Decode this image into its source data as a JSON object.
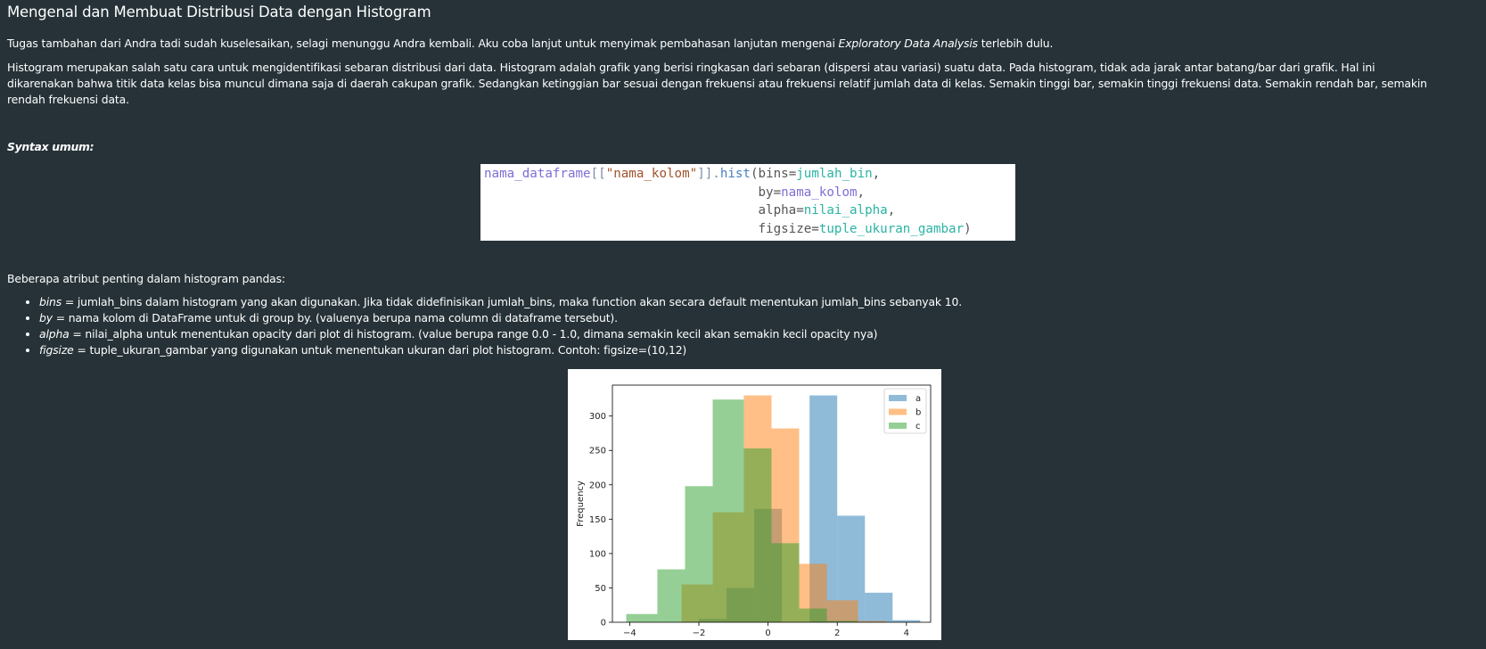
{
  "title": "Mengenal dan Membuat Distribusi Data dengan Histogram",
  "intro": {
    "before": "Tugas tambahan dari Andra tadi sudah kuselesaikan, selagi menunggu Andra kembali. Aku coba lanjut untuk menyimak pembahasan lanjutan mengenai ",
    "emphasis": "Exploratory Data Analysis",
    "after": " terlebih dulu."
  },
  "description": {
    "line1": "Histogram merupakan salah satu cara untuk mengidentifikasi sebaran distribusi dari data. Histogram adalah grafik yang berisi ringkasan dari sebaran (dispersi atau variasi) suatu data. Pada histogram, tidak ada jarak antar batang/bar dari grafik. Hal ini",
    "line2": "dikarenakan bahwa titik data kelas bisa muncul dimana saja di daerah cakupan grafik. Sedangkan ketinggian bar sesuai dengan frekuensi atau frekuensi relatif jumlah data di kelas. Semakin tinggi bar, semakin tinggi frekuensi data. Semakin rendah bar, semakin",
    "line3": "rendah frekuensi data."
  },
  "syntax_label": "Syntax umum:",
  "code": {
    "df": "nama_dataframe",
    "open": "[[",
    "col": "\"nama_kolom\"",
    "close": "]].",
    "method": "hist",
    "paren": "(",
    "bins_key": "bins=",
    "bins_val": "jumlah_bin",
    "by_key": "by=",
    "by_val": "nama_kolom",
    "alpha_key": "alpha=",
    "alpha_val": "nilai_alpha",
    "figsize_key": "figsize=",
    "figsize_val": "tuple_ukuran_gambar",
    "comma": ",",
    "end": ")"
  },
  "attributes_intro": "Beberapa atribut penting dalam histogram pandas:",
  "attributes": [
    {
      "name": "bins",
      "desc": " = jumlah_bins dalam histogram yang akan digunakan. Jika tidak didefinisikan jumlah_bins, maka function akan secara default menentukan jumlah_bins sebanyak 10."
    },
    {
      "name": "by",
      "desc": " = nama kolom di DataFrame untuk di group by. (valuenya berupa nama column di dataframe tersebut)."
    },
    {
      "name": "alpha",
      "desc": " = nilai_alpha untuk menentukan opacity dari plot di histogram. (value berupa range 0.0 - 1.0, dimana semakin kecil akan semakin kecil opacity nya)"
    },
    {
      "name": "figsize",
      "desc": " = tuple_ukuran_gambar yang digunakan untuk menentukan ukuran dari plot histogram. Contoh: figsize=(10,12)"
    }
  ],
  "colors": {
    "background": "#263238",
    "series_a": "#1f77b4",
    "series_b": "#ff7f0e",
    "series_c": "#2ca02c"
  },
  "chart_data": {
    "type": "bar",
    "title": "",
    "xlabel": "",
    "ylabel": "Frequency",
    "xlim": [
      -4.5,
      4.7
    ],
    "ylim": [
      0,
      345
    ],
    "xticks": [
      -4,
      -2,
      0,
      2,
      4
    ],
    "yticks": [
      0,
      50,
      100,
      150,
      200,
      250,
      300
    ],
    "alpha": 0.5,
    "grid": false,
    "legend": "top-right",
    "series": [
      {
        "name": "a",
        "color": "#1f77b4",
        "bins": [
          [
            -2.0,
            -1.2,
            5
          ],
          [
            -1.2,
            -0.4,
            50
          ],
          [
            -0.4,
            0.4,
            165
          ],
          [
            0.4,
            1.2,
            0
          ],
          [
            1.2,
            2.0,
            330
          ],
          [
            2.0,
            2.8,
            155
          ],
          [
            2.8,
            3.6,
            43
          ],
          [
            3.6,
            4.4,
            3
          ]
        ]
      },
      {
        "name": "b",
        "color": "#ff7f0e",
        "bins": [
          [
            -2.5,
            -1.6,
            55
          ],
          [
            -1.6,
            -0.7,
            160
          ],
          [
            -0.7,
            0.1,
            330
          ],
          [
            0.1,
            0.9,
            282
          ],
          [
            0.9,
            1.7,
            85
          ],
          [
            1.7,
            2.6,
            32
          ],
          [
            2.6,
            3.4,
            2
          ]
        ]
      },
      {
        "name": "c",
        "color": "#2ca02c",
        "bins": [
          [
            -4.1,
            -3.2,
            12
          ],
          [
            -3.2,
            -2.4,
            77
          ],
          [
            -2.4,
            -1.6,
            198
          ],
          [
            -1.6,
            -0.7,
            324
          ],
          [
            -0.7,
            0.1,
            253
          ],
          [
            0.1,
            0.9,
            115
          ],
          [
            0.9,
            1.7,
            20
          ],
          [
            1.7,
            2.6,
            2
          ]
        ]
      }
    ]
  }
}
